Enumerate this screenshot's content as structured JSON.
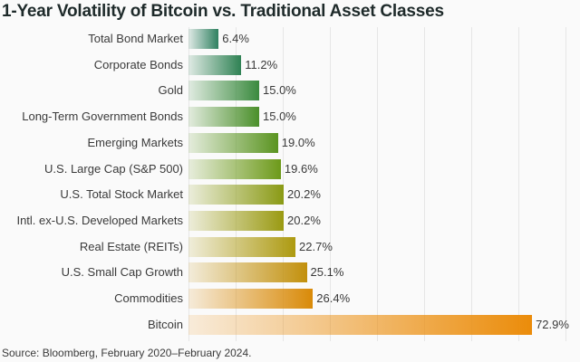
{
  "title": "1-Year Volatility of Bitcoin vs. Traditional Asset Classes",
  "source": "Source: Bloomberg, February 2020–February 2024.",
  "chart_data": {
    "type": "bar",
    "orientation": "horizontal",
    "title": "1-Year Volatility of Bitcoin vs. Traditional Asset Classes",
    "xlabel": "",
    "ylabel": "",
    "categories": [
      "Total Bond Market",
      "Corporate Bonds",
      "Gold",
      "Long-Term Government Bonds",
      "Emerging Markets",
      "U.S. Large Cap (S&P 500)",
      "U.S. Total Stock Market",
      "Intl. ex-U.S. Developed Markets",
      "Real Estate (REITs)",
      "U.S. Small Cap Growth",
      "Commodities",
      "Bitcoin"
    ],
    "values": [
      6.4,
      11.2,
      15.0,
      15.0,
      19.0,
      19.6,
      20.2,
      20.2,
      22.7,
      25.1,
      26.4,
      72.9
    ],
    "value_labels": [
      "6.4%",
      "11.2%",
      "15.0%",
      "15.0%",
      "19.0%",
      "19.6%",
      "20.2%",
      "20.2%",
      "22.7%",
      "25.1%",
      "26.4%",
      "72.9%"
    ],
    "xlim": [
      0,
      80
    ],
    "grid": true,
    "legend": "none",
    "source": "Source: Bloomberg, February 2020–February 2024."
  },
  "bar_colors": [
    "#2e8060",
    "#2f8254",
    "#3a8a3e",
    "#4a8f2a",
    "#5a9420",
    "#6d9a1a",
    "#8a9a14",
    "#9a9a12",
    "#ad9a10",
    "#c2900c",
    "#d98a08",
    "#eb8c0a"
  ]
}
